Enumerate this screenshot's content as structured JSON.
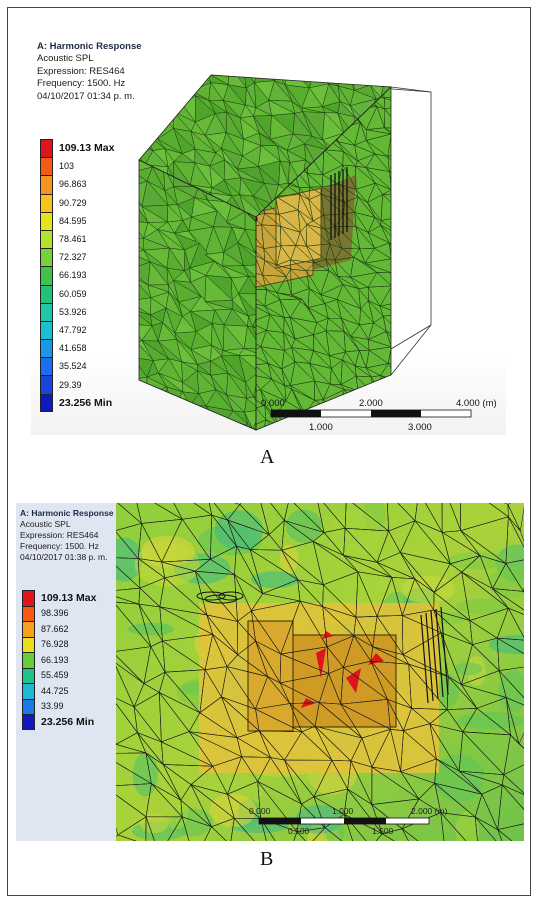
{
  "panel_a": {
    "title": "A: Harmonic Response",
    "lines": [
      "Acoustic SPL",
      "Expression: RES464",
      "Frequency: 1500. Hz",
      "04/10/2017 01:34 p. m."
    ],
    "legend": [
      {
        "label": "109.13 Max",
        "color": "#e0141b"
      },
      {
        "label": "103",
        "color": "#f25a15"
      },
      {
        "label": "96.863",
        "color": "#f7941d"
      },
      {
        "label": "90.729",
        "color": "#f8c21d"
      },
      {
        "label": "84.595",
        "color": "#e5e51c"
      },
      {
        "label": "78.461",
        "color": "#b4e12a"
      },
      {
        "label": "72.327",
        "color": "#77d13a"
      },
      {
        "label": "66.193",
        "color": "#40c24d"
      },
      {
        "label": "60.059",
        "color": "#23c27b"
      },
      {
        "label": "53.926",
        "color": "#1ec8a8"
      },
      {
        "label": "47.792",
        "color": "#1bbfd1"
      },
      {
        "label": "41.658",
        "color": "#1a98e6"
      },
      {
        "label": "35.524",
        "color": "#1a6ff0"
      },
      {
        "label": "29.39",
        "color": "#1a44e0"
      },
      {
        "label": "23.256 Min",
        "color": "#1018c0"
      }
    ],
    "scale_top": [
      "0.000",
      "2.000",
      "4.000 (m)"
    ],
    "scale_bottom": [
      "1.000",
      "3.000"
    ],
    "caption": "A"
  },
  "panel_b": {
    "title": "A: Harmonic Response",
    "lines": [
      "Acoustic SPL",
      "Expression: RES464",
      "Frequency: 1500. Hz",
      "04/10/2017 01:38 p. m."
    ],
    "legend": [
      {
        "label": "109.13 Max",
        "color": "#e0141b"
      },
      {
        "label": "98.396",
        "color": "#f25a15"
      },
      {
        "label": "87.662",
        "color": "#f7a11d"
      },
      {
        "label": "76.928",
        "color": "#e8e01c"
      },
      {
        "label": "66.193",
        "color": "#66cc3c"
      },
      {
        "label": "55.459",
        "color": "#22c38a"
      },
      {
        "label": "44.725",
        "color": "#1cb8d6"
      },
      {
        "label": "33.99",
        "color": "#1a7be8"
      },
      {
        "label": "23.256 Min",
        "color": "#1018c0"
      }
    ],
    "scale_top": [
      "0.000",
      "1.000",
      "2.000 (m)"
    ],
    "scale_bottom": [
      "0.500",
      "1.500"
    ],
    "caption": "B"
  }
}
